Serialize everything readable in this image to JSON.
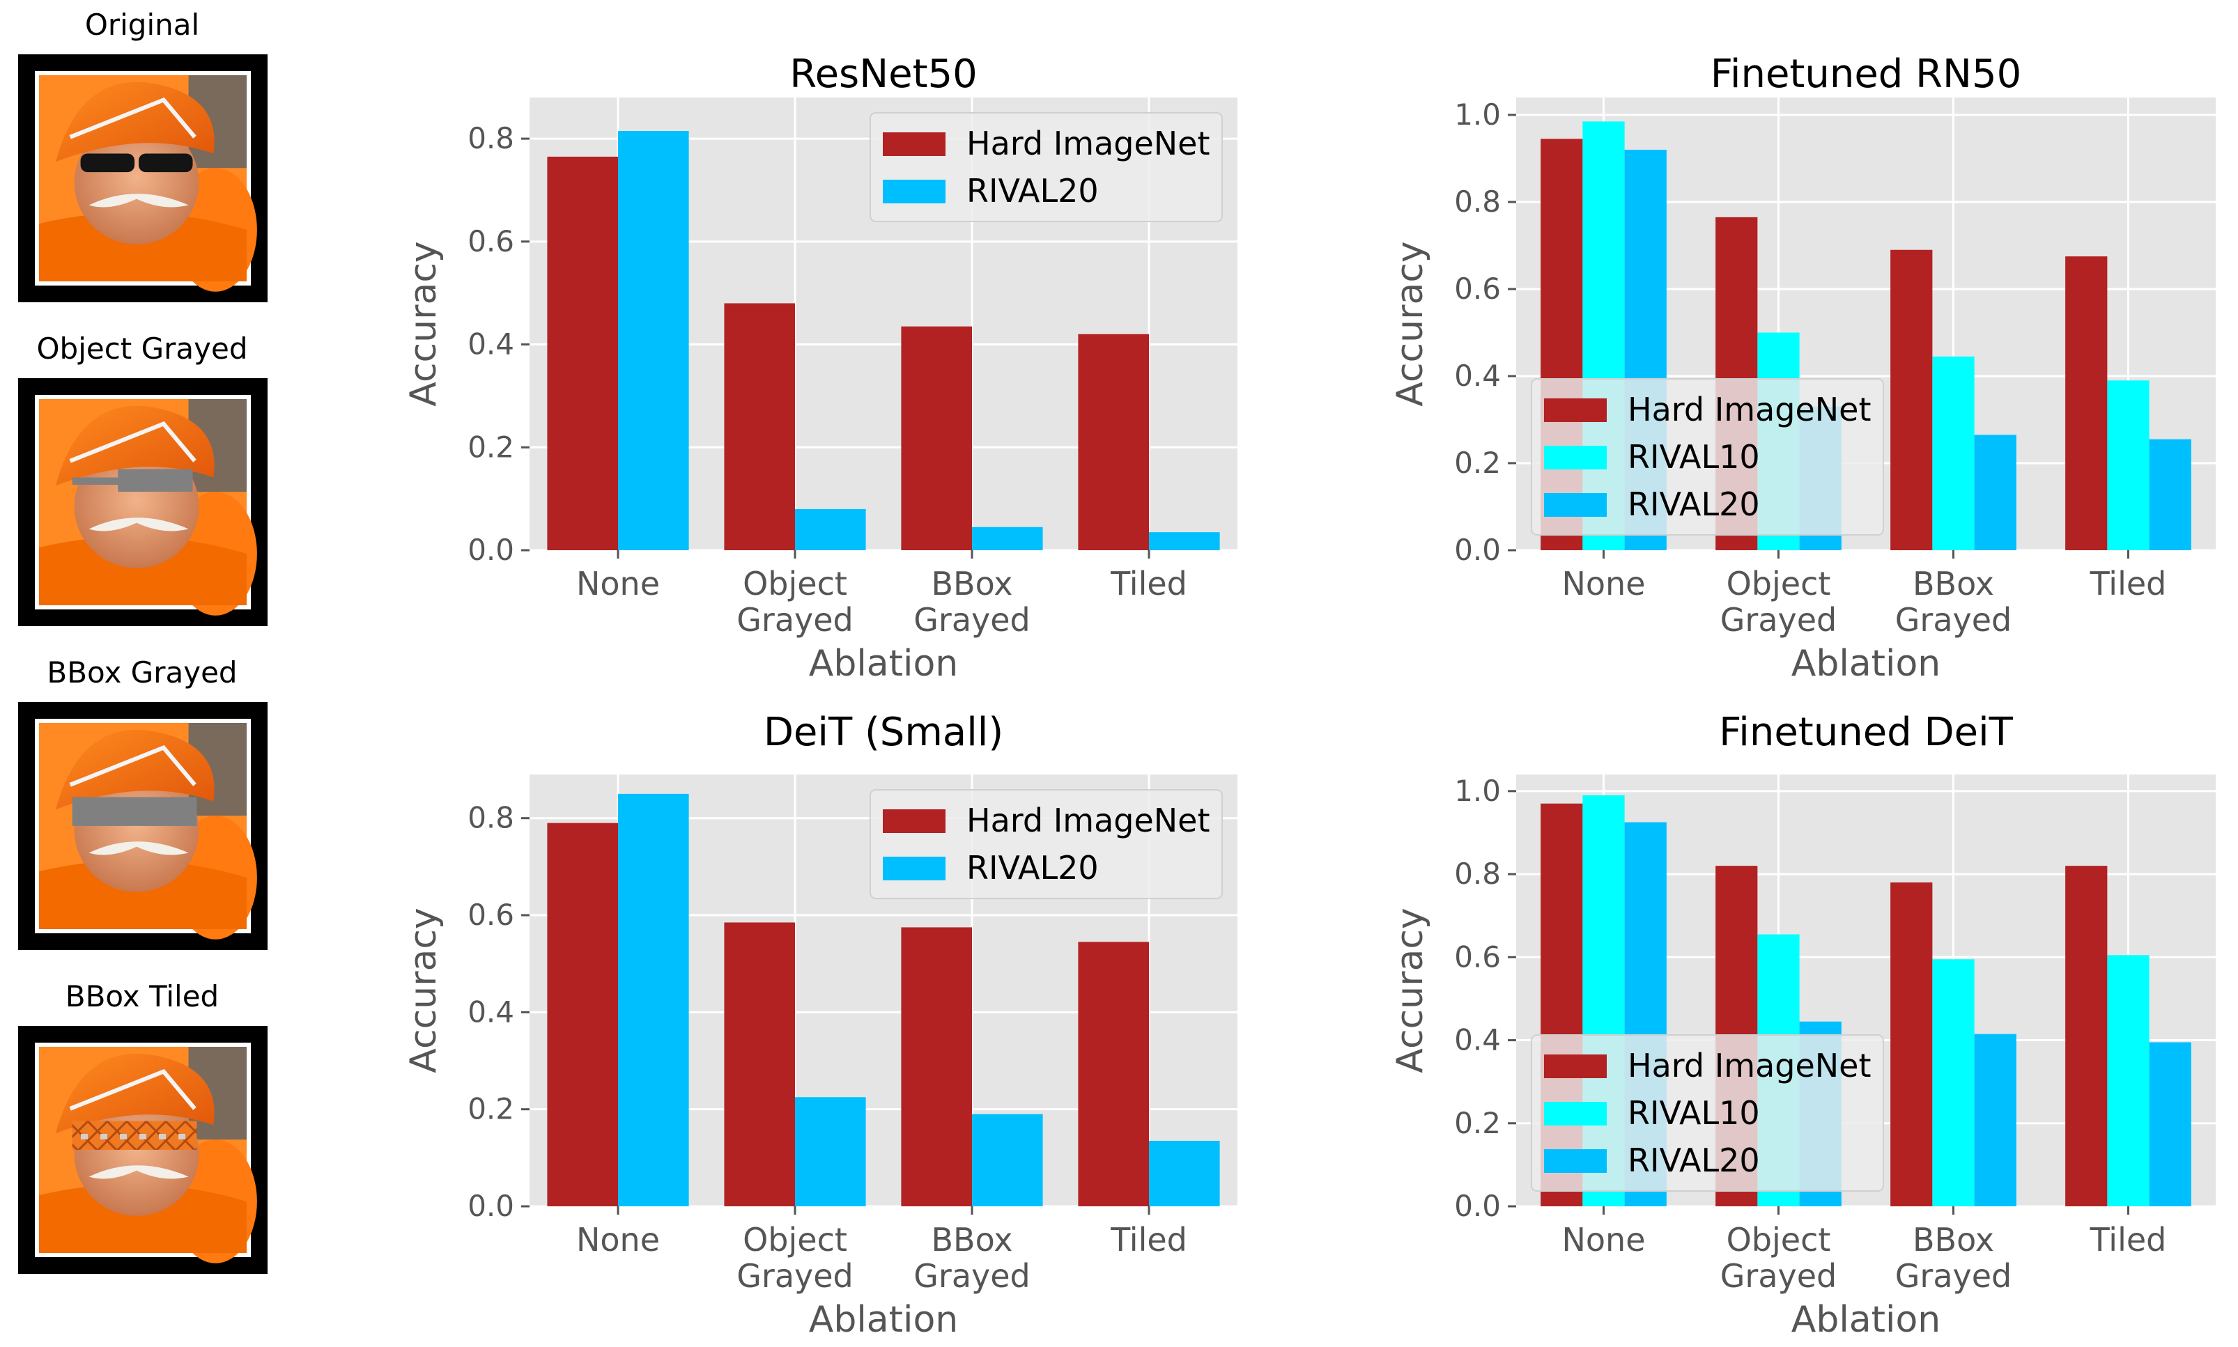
{
  "thumbnails": [
    {
      "label": "Original",
      "mask": "none"
    },
    {
      "label": "Object Grayed",
      "mask": "object-gray"
    },
    {
      "label": "BBox Grayed",
      "mask": "bbox-gray"
    },
    {
      "label": "BBox Tiled",
      "mask": "bbox-tiled"
    }
  ],
  "colors": {
    "hard_imagenet": "#b22222",
    "rival10": "#00ffff",
    "rival20": "#00bfff",
    "plot_bg": "#e5e5e5",
    "grid": "#ffffff"
  },
  "chart_data": [
    {
      "type": "bar",
      "title": "ResNet50",
      "xlabel": "Ablation",
      "ylabel": "Accuracy",
      "categories": [
        "None",
        "Object\nGrayed",
        "BBox\nGrayed",
        "Tiled"
      ],
      "ylim": [
        0,
        0.88
      ],
      "yticks": [
        "0.0",
        "0.2",
        "0.4",
        "0.6",
        "0.8"
      ],
      "legend_position": "upper-right",
      "series": [
        {
          "name": "Hard ImageNet",
          "color_key": "hard_imagenet",
          "values": [
            0.765,
            0.48,
            0.435,
            0.42
          ]
        },
        {
          "name": "RIVAL20",
          "color_key": "rival20",
          "values": [
            0.815,
            0.08,
            0.045,
            0.035
          ]
        }
      ]
    },
    {
      "type": "bar",
      "title": "Finetuned RN50",
      "xlabel": "Ablation",
      "ylabel": "Accuracy",
      "categories": [
        "None",
        "Object\nGrayed",
        "BBox\nGrayed",
        "Tiled"
      ],
      "ylim": [
        0,
        1.04
      ],
      "yticks": [
        "0.0",
        "0.2",
        "0.4",
        "0.6",
        "0.8",
        "1.0"
      ],
      "legend_position": "lower-left",
      "series": [
        {
          "name": "Hard ImageNet",
          "color_key": "hard_imagenet",
          "values": [
            0.945,
            0.765,
            0.69,
            0.675
          ]
        },
        {
          "name": "RIVAL10",
          "color_key": "rival10",
          "values": [
            0.985,
            0.5,
            0.445,
            0.39
          ]
        },
        {
          "name": "RIVAL20",
          "color_key": "rival20",
          "values": [
            0.92,
            0.33,
            0.265,
            0.255
          ]
        }
      ]
    },
    {
      "type": "bar",
      "title": "DeiT (Small)",
      "xlabel": "Ablation",
      "ylabel": "Accuracy",
      "categories": [
        "None",
        "Object\nGrayed",
        "BBox\nGrayed",
        "Tiled"
      ],
      "ylim": [
        0,
        0.89
      ],
      "yticks": [
        "0.0",
        "0.2",
        "0.4",
        "0.6",
        "0.8"
      ],
      "legend_position": "upper-right",
      "series": [
        {
          "name": "Hard ImageNet",
          "color_key": "hard_imagenet",
          "values": [
            0.79,
            0.585,
            0.575,
            0.545
          ]
        },
        {
          "name": "RIVAL20",
          "color_key": "rival20",
          "values": [
            0.85,
            0.225,
            0.19,
            0.135
          ]
        }
      ]
    },
    {
      "type": "bar",
      "title": "Finetuned DeiT",
      "xlabel": "Ablation",
      "ylabel": "Accuracy",
      "categories": [
        "None",
        "Object\nGrayed",
        "BBox\nGrayed",
        "Tiled"
      ],
      "ylim": [
        0,
        1.04
      ],
      "yticks": [
        "0.0",
        "0.2",
        "0.4",
        "0.6",
        "0.8",
        "1.0"
      ],
      "legend_position": "lower-left",
      "series": [
        {
          "name": "Hard ImageNet",
          "color_key": "hard_imagenet",
          "values": [
            0.97,
            0.82,
            0.78,
            0.82
          ]
        },
        {
          "name": "RIVAL10",
          "color_key": "rival10",
          "values": [
            0.99,
            0.655,
            0.595,
            0.605
          ]
        },
        {
          "name": "RIVAL20",
          "color_key": "rival20",
          "values": [
            0.925,
            0.445,
            0.415,
            0.395
          ]
        }
      ]
    }
  ]
}
